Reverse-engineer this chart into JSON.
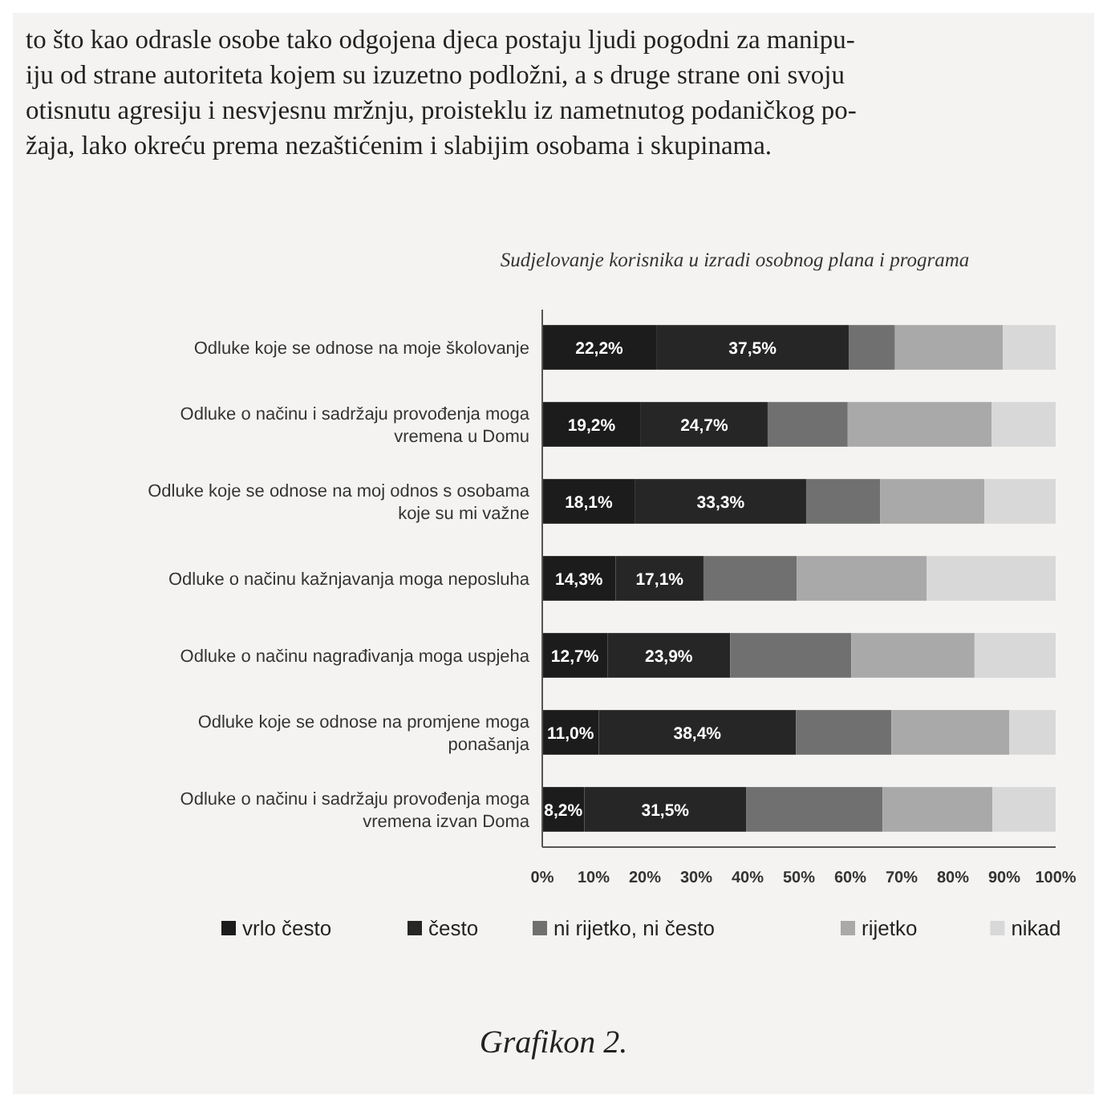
{
  "chart_data": {
    "type": "bar",
    "orientation": "horizontal",
    "stacked": true,
    "title": "Sudjelovanje korisnika u izradi  osobnog plana i programa",
    "categories": [
      "Odluke koje se odnose na moje školovanje",
      "Odluke o načinu i sadržaju provođenja moga vremena u Domu",
      "Odluke koje se odnose na moj odnos s osobama koje su mi važne",
      "Odluke o načinu kažnjavanja moga neposluha",
      "Odluke o načinu nagrađivanja moga uspjeha",
      "Odluke koje se odnose na promjene moga ponašanja",
      "Odluke o načinu i sadržaju provođenja moga vremena izvan Doma"
    ],
    "series": [
      {
        "name": "vrlo često",
        "color": "#1c1c1c",
        "values": [
          22.2,
          19.2,
          18.1,
          14.3,
          12.7,
          11.0,
          8.2
        ],
        "value_labels": [
          "22,2%",
          "19,2%",
          "18,1%",
          "14,3%",
          "12,7%",
          "11,0%",
          "8,2%"
        ]
      },
      {
        "name": "često",
        "color": "#262626",
        "values": [
          37.5,
          24.7,
          33.3,
          17.1,
          23.9,
          38.4,
          31.5
        ],
        "value_labels": [
          "37,5%",
          "24,7%",
          "33,3%",
          "17,1%",
          "23,9%",
          "38,4%",
          "31,5%"
        ]
      },
      {
        "name": "ni rijetko, ni često",
        "color": "#707070",
        "values": [
          9.0,
          15.6,
          14.4,
          18.2,
          23.6,
          18.6,
          26.6
        ]
      },
      {
        "name": "rijetko",
        "color": "#a9a9a9",
        "values": [
          21.0,
          28.0,
          20.3,
          25.3,
          24.0,
          23.0,
          21.4
        ]
      },
      {
        "name": "nikad",
        "color": "#d8d8d8",
        "values": [
          10.3,
          12.5,
          13.9,
          25.1,
          15.8,
          9.0,
          12.3
        ]
      }
    ],
    "xlim": [
      0,
      100
    ],
    "xticks": [
      {
        "value": 0,
        "label": "0%"
      },
      {
        "value": 10,
        "label": "10%"
      },
      {
        "value": 20,
        "label": "20%"
      },
      {
        "value": 30,
        "label": "30%"
      },
      {
        "value": 40,
        "label": "40%"
      },
      {
        "value": 50,
        "label": "50%"
      },
      {
        "value": 60,
        "label": "60%"
      },
      {
        "value": 70,
        "label": "70%"
      },
      {
        "value": 80,
        "label": "80%"
      },
      {
        "value": 90,
        "label": "90%"
      },
      {
        "value": 100,
        "label": "100%"
      }
    ],
    "grid": false,
    "legend": "bottom",
    "annotations": [
      "to što kao odrasle osobe tako odgojena djeca postaju ljudi pogodni za manipu-",
      "iju od strane autoriteta kojem su izuzetno podložni, a s druge strane oni svoju",
      "otisnutu agresiju i nesvjesnu mržnju, proisteklu iz nametnutog podaničkog po-",
      "žaja, lako okreću prema nezaštićenim i slabijim osobama i skupinama.",
      "Grafikon 2."
    ]
  }
}
